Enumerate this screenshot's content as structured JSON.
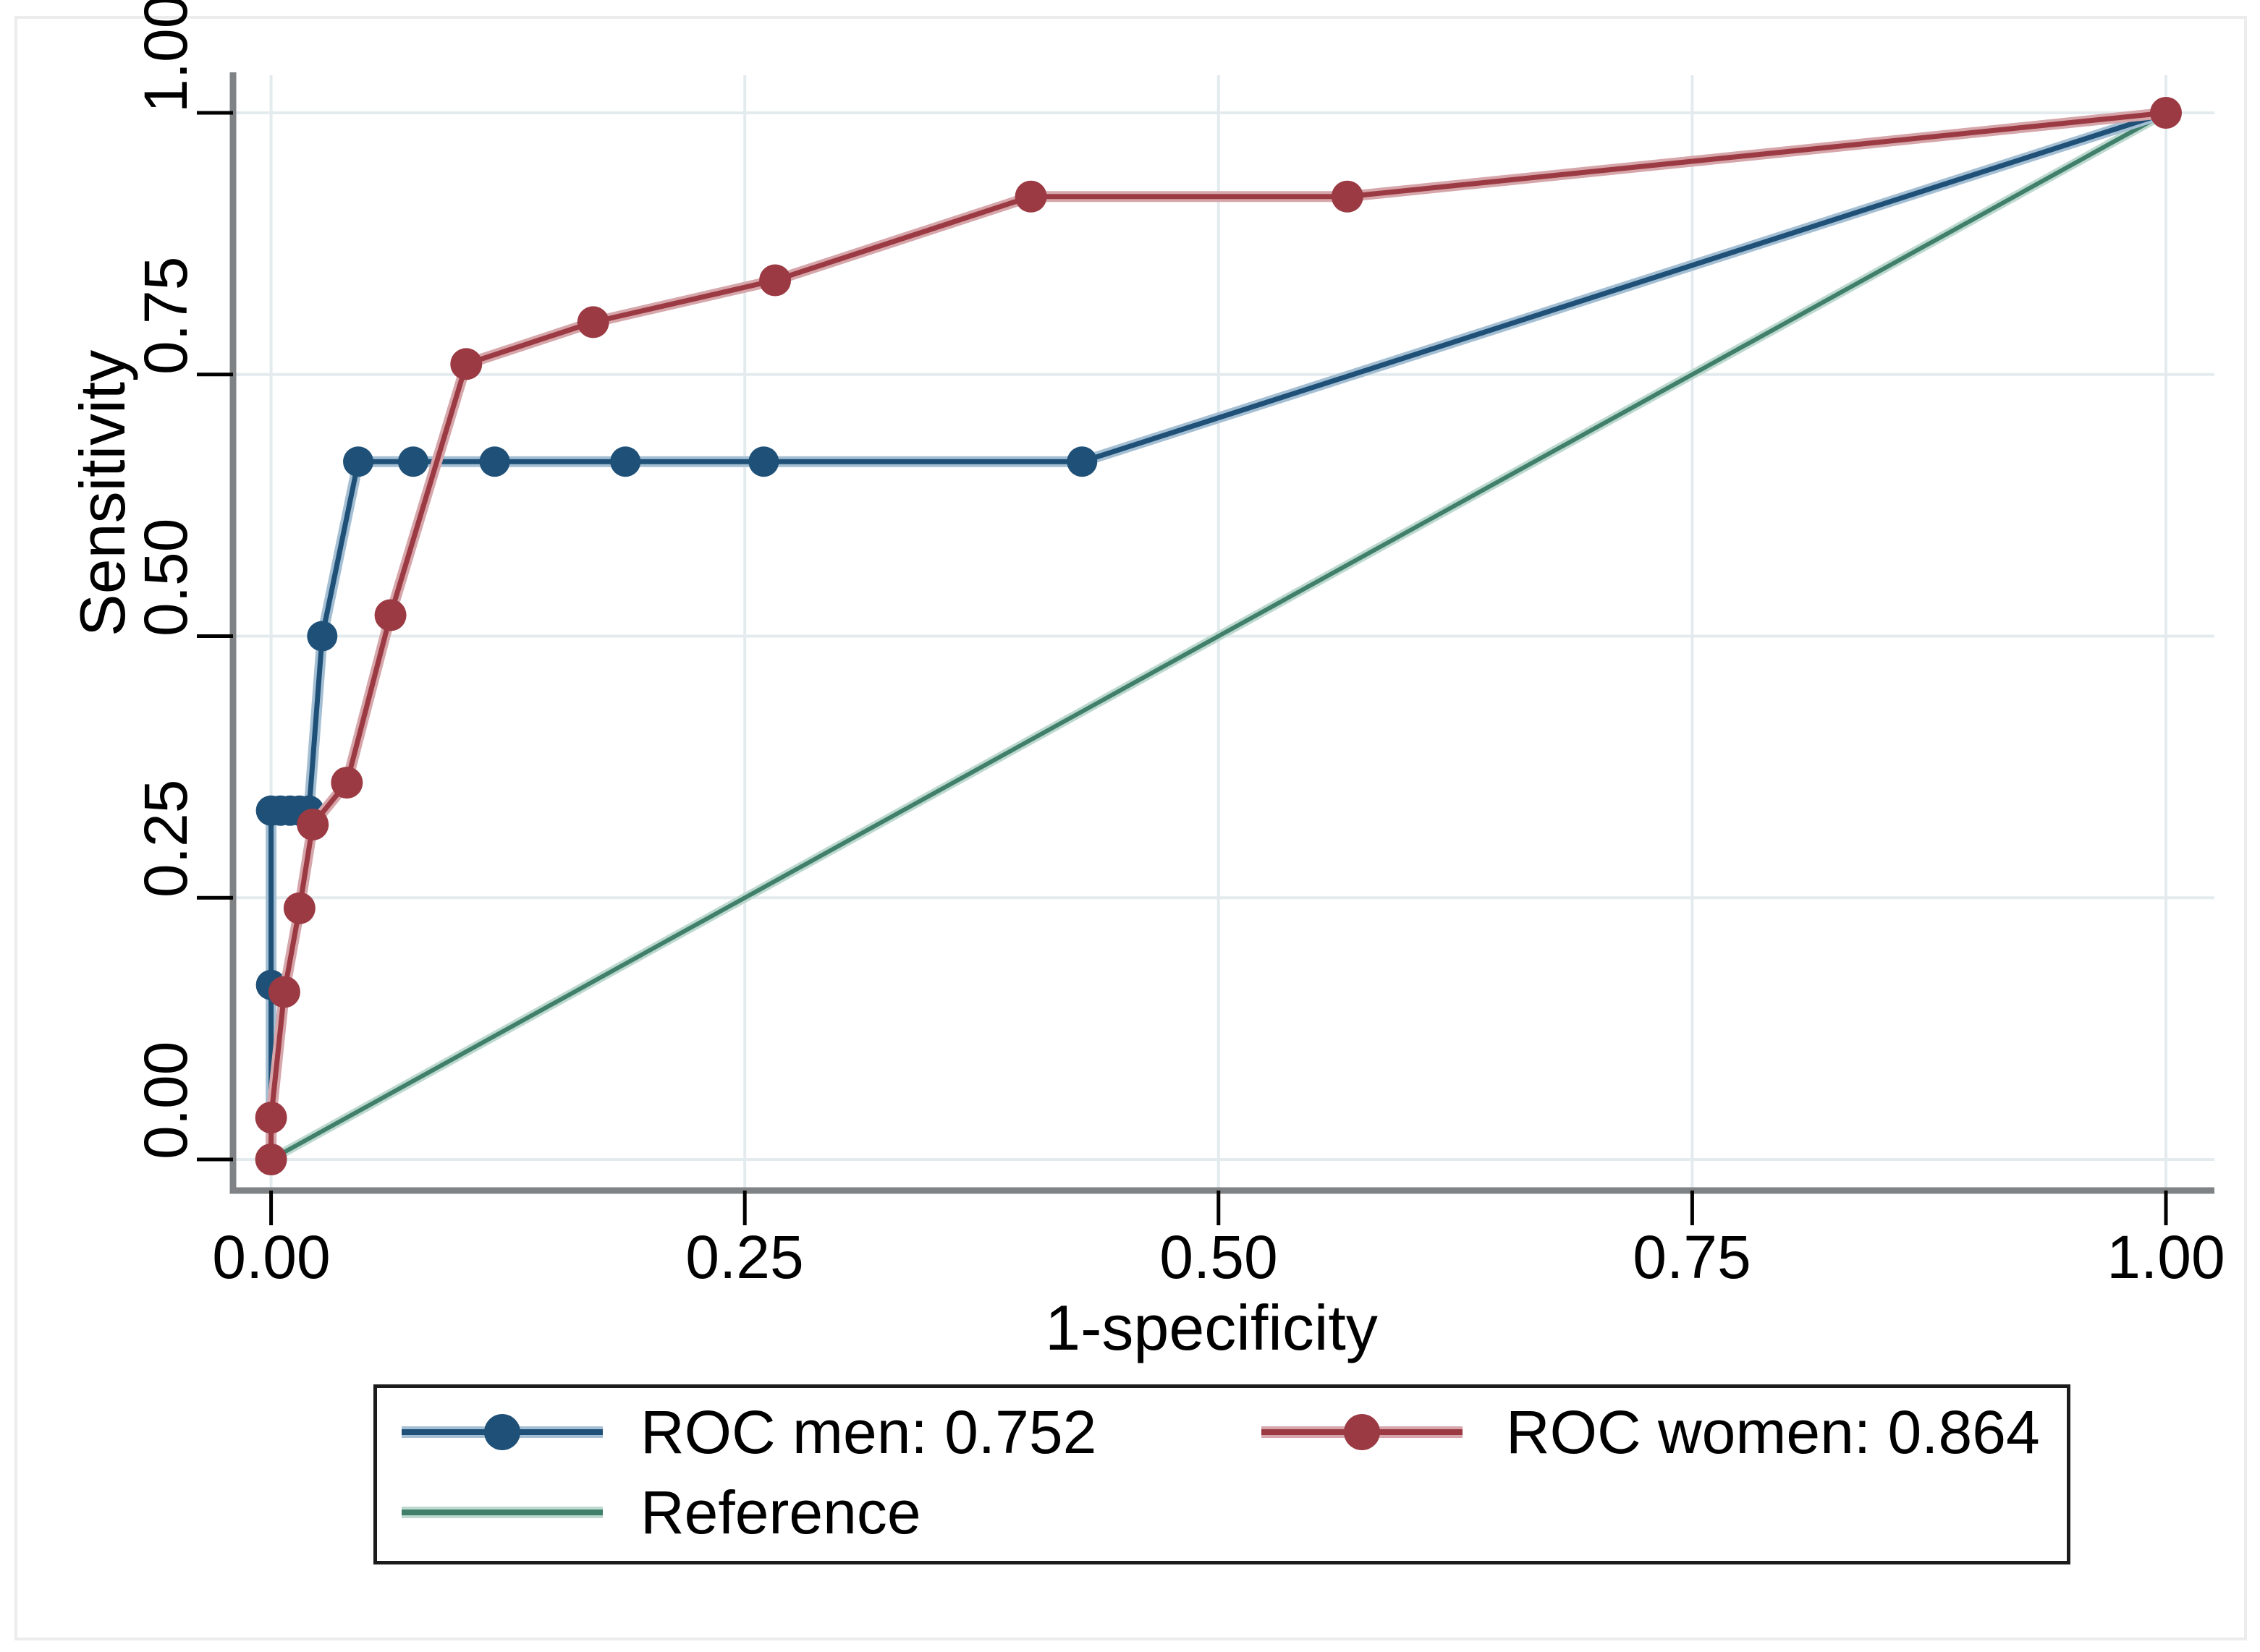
{
  "figure": {
    "title": "",
    "xlabel": "1-specificity",
    "ylabel": "Sensitivity"
  },
  "colors": {
    "background": "#ffffff",
    "figure_border": "#ececec",
    "grid": "#e3ebee",
    "axis": "#7f8385",
    "tick": "#000000",
    "text": "#000000",
    "legend_border": "#1c1c1c",
    "roc_men": "#1f5077",
    "roc_men_halo": "#a4bfd3",
    "roc_women": "#9b3a43",
    "roc_women_halo": "#d6a6aa",
    "reference": "#40806b",
    "reference_halo": "#bdd9cf"
  },
  "chart_data": {
    "type": "line",
    "title": "",
    "xlabel": "1-specificity",
    "ylabel": "Sensitivity",
    "xlim": [
      0,
      1
    ],
    "ylim": [
      0,
      1
    ],
    "grid": true,
    "legend_position": "bottom",
    "x_ticks": [
      0,
      0.25,
      0.5,
      0.75,
      1
    ],
    "x_tick_labels": [
      "0.00",
      "0.25",
      "0.50",
      "0.75",
      "1.00"
    ],
    "y_ticks": [
      0,
      0.25,
      0.5,
      0.75,
      1
    ],
    "y_tick_labels": [
      "0.00",
      "0.25",
      "0.50",
      "0.75",
      "1.00"
    ],
    "series": [
      {
        "id": "reference",
        "name": "Reference",
        "auc_label": "Reference",
        "color": "#40806b",
        "halo": "#bdd9cf",
        "markers": false,
        "points": [
          [
            0,
            0
          ],
          [
            1,
            1
          ]
        ]
      },
      {
        "id": "roc-men",
        "name": "ROC men",
        "auc": 0.752,
        "auc_label": "ROC men: 0.752",
        "color": "#1f5077",
        "halo": "#a4bfd3",
        "markers": true,
        "points": [
          [
            0,
            0
          ],
          [
            0,
            0.1667
          ],
          [
            0,
            0.3333
          ],
          [
            0.005,
            0.3333
          ],
          [
            0.01,
            0.3333
          ],
          [
            0.015,
            0.3333
          ],
          [
            0.02,
            0.3333
          ],
          [
            0.027,
            0.5
          ],
          [
            0.046,
            0.6667
          ],
          [
            0.075,
            0.6667
          ],
          [
            0.118,
            0.6667
          ],
          [
            0.187,
            0.6667
          ],
          [
            0.26,
            0.6667
          ],
          [
            0.428,
            0.6667
          ],
          [
            1,
            1
          ]
        ]
      },
      {
        "id": "roc-women",
        "name": "ROC women",
        "auc": 0.864,
        "auc_label": "ROC women:  0.864",
        "color": "#9b3a43",
        "halo": "#d6a6aa",
        "markers": true,
        "points": [
          [
            0,
            0
          ],
          [
            0,
            0.04
          ],
          [
            0.007,
            0.16
          ],
          [
            0.015,
            0.24
          ],
          [
            0.022,
            0.32
          ],
          [
            0.04,
            0.36
          ],
          [
            0.063,
            0.52
          ],
          [
            0.103,
            0.76
          ],
          [
            0.17,
            0.8
          ],
          [
            0.266,
            0.84
          ],
          [
            0.401,
            0.92
          ],
          [
            0.568,
            0.92
          ],
          [
            1,
            1
          ]
        ]
      }
    ]
  }
}
